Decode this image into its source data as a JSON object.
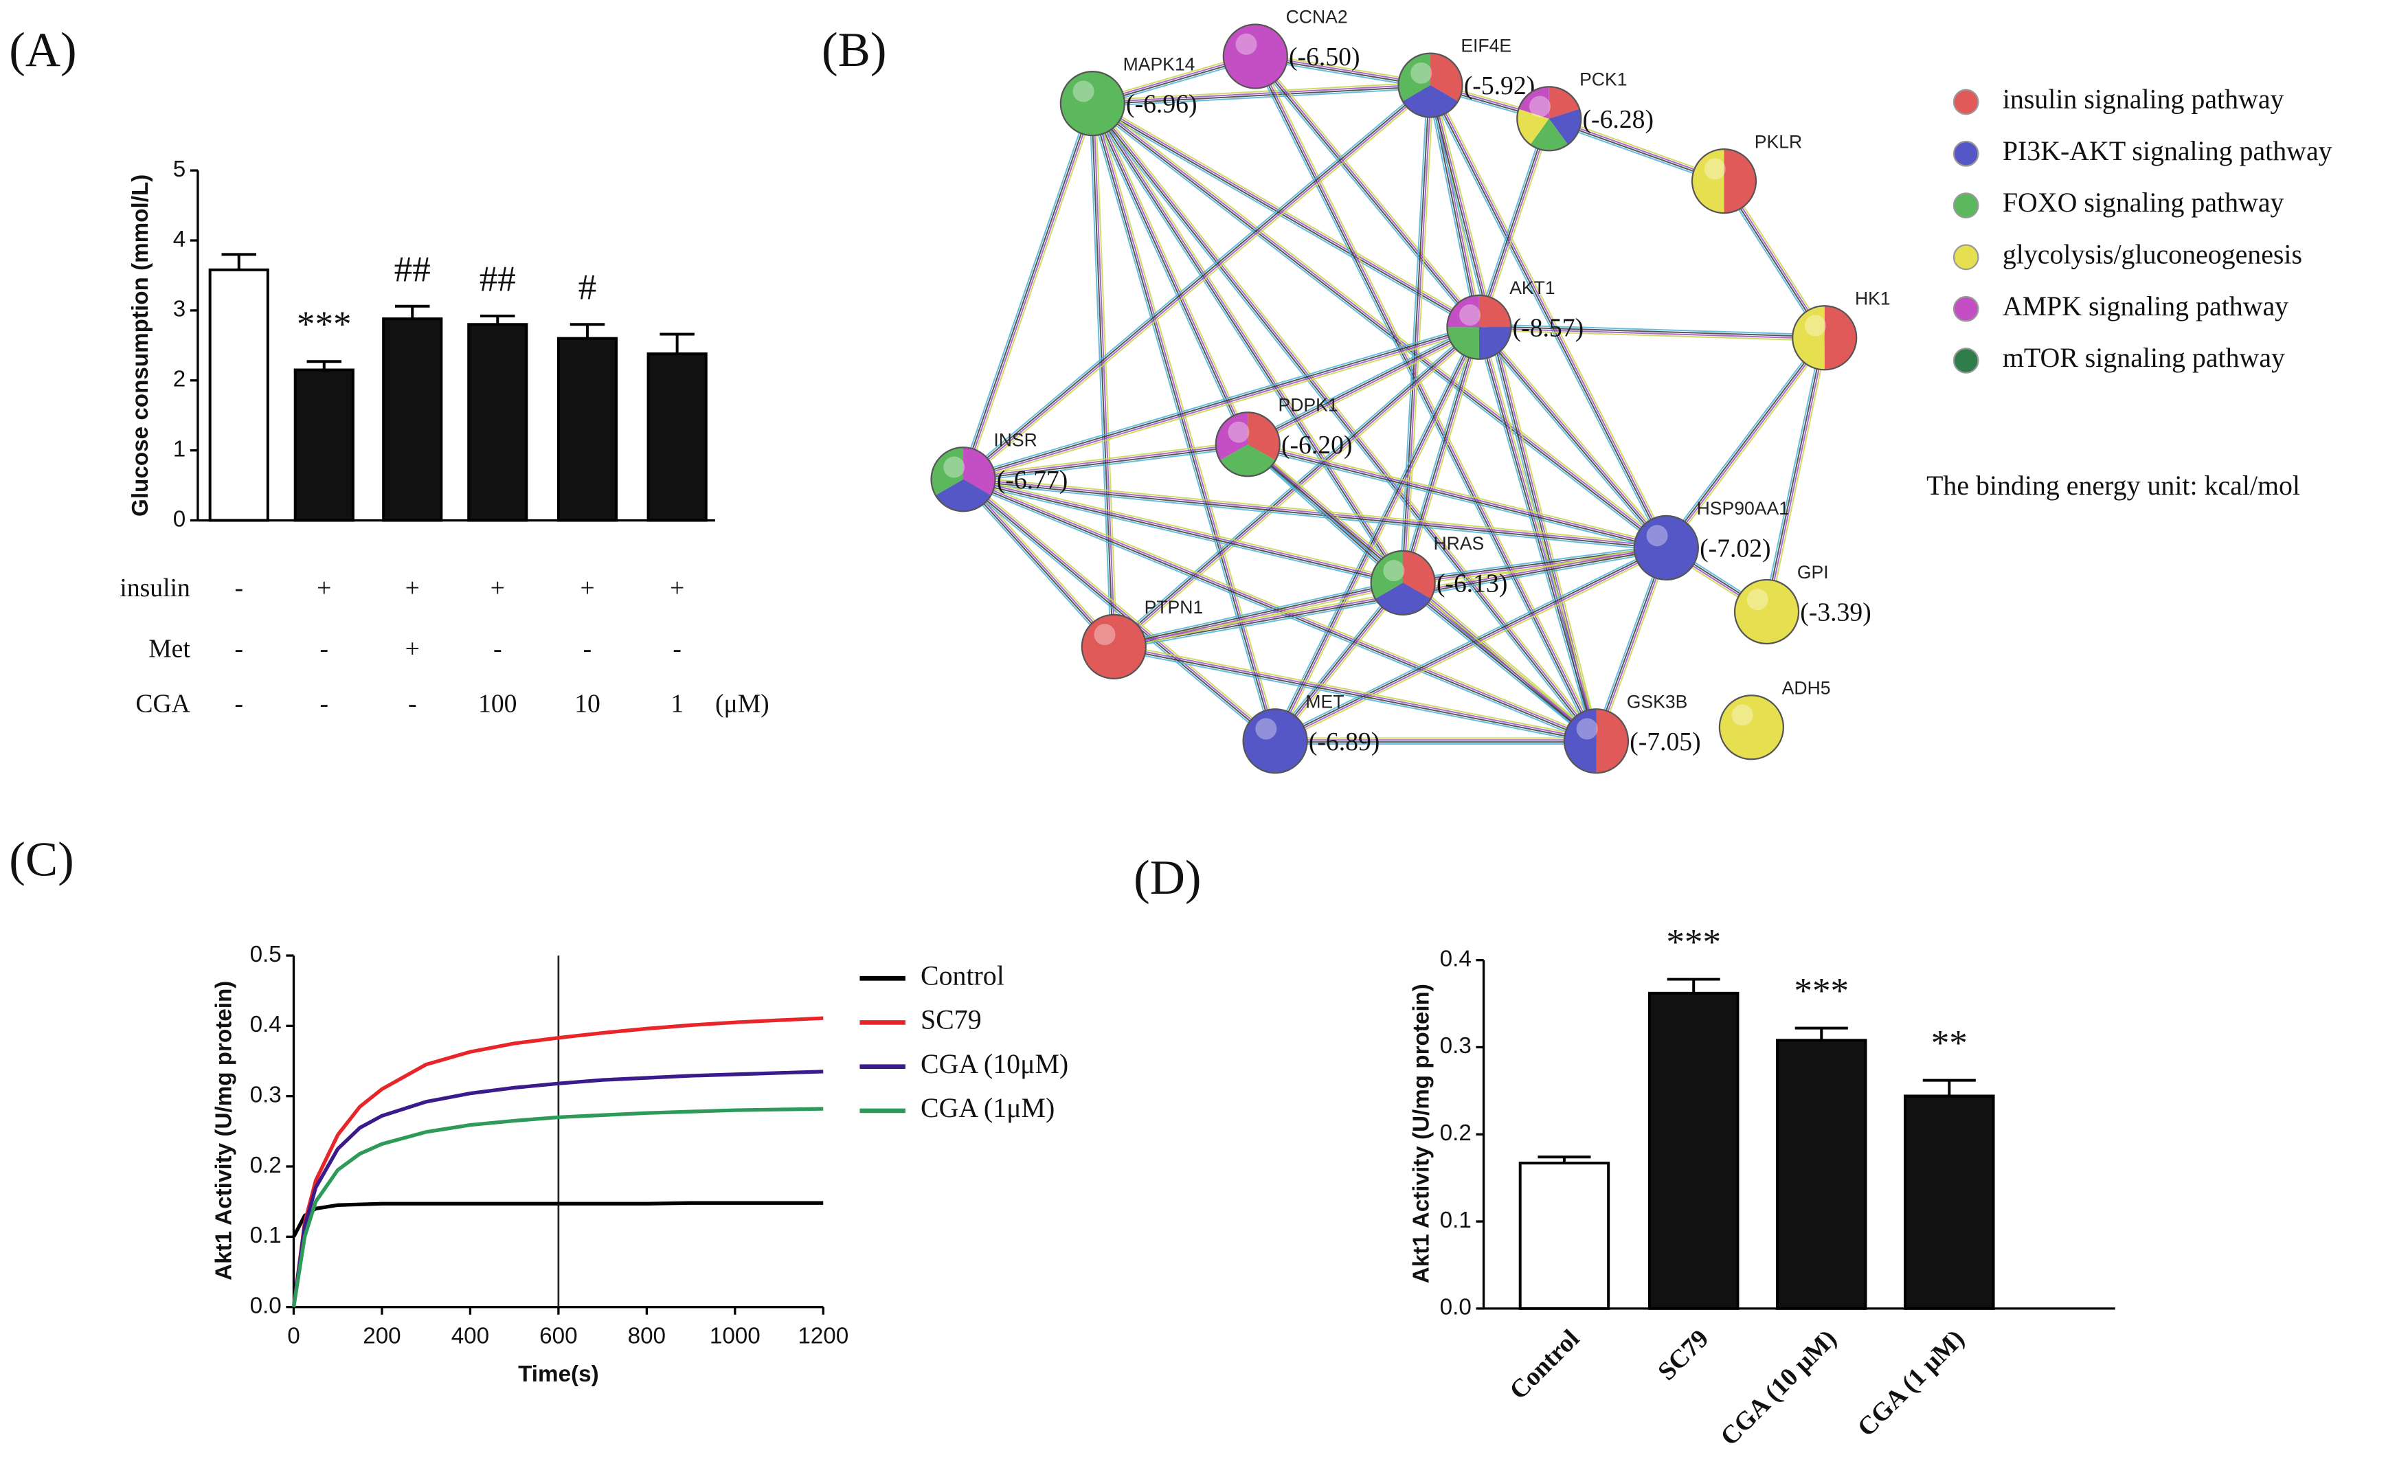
{
  "chart_data": [
    {
      "type": "bar",
      "panel": "(A)",
      "ylabel": "Glucose consumption (mmol/L)",
      "categories": [
        null,
        null,
        null,
        null,
        null,
        null
      ],
      "values": [
        3.58,
        2.15,
        2.88,
        2.8,
        2.6,
        2.38
      ],
      "errors": [
        0.22,
        0.12,
        0.18,
        0.12,
        0.2,
        0.28
      ],
      "colors": [
        "#ffffff",
        "#111111",
        "#111111",
        "#111111",
        "#111111",
        "#111111"
      ],
      "significance": [
        null,
        "***",
        "##",
        "##",
        "#",
        null
      ],
      "ylim": [
        0,
        5
      ],
      "yticks": [
        0,
        1,
        2,
        3,
        4,
        5
      ],
      "conditions": [
        {
          "label": "insulin",
          "cells": [
            "-",
            "+",
            "+",
            "+",
            "+",
            "+"
          ]
        },
        {
          "label": "Met",
          "cells": [
            "-",
            "-",
            "+",
            "-",
            "-",
            "-"
          ]
        },
        {
          "label": "CGA",
          "cells": [
            "-",
            "-",
            "-",
            "100",
            "10",
            "1"
          ]
        }
      ],
      "condition_unit": "(μM)"
    },
    {
      "type": "line",
      "panel": "(C)",
      "xlabel": "Time(s)",
      "ylabel": "Akt1 Activity (U/mg protein)",
      "x": [
        0,
        25,
        50,
        100,
        150,
        200,
        300,
        400,
        500,
        600,
        700,
        800,
        900,
        1000,
        1100,
        1200
      ],
      "series": [
        {
          "name": "Control",
          "color": "#000000",
          "values": [
            0.1,
            0.13,
            0.14,
            0.145,
            0.146,
            0.147,
            0.147,
            0.147,
            0.147,
            0.147,
            0.147,
            0.147,
            0.148,
            0.148,
            0.148,
            0.148
          ]
        },
        {
          "name": "SC79",
          "color": "#e8262a",
          "values": [
            0,
            0.12,
            0.18,
            0.245,
            0.285,
            0.31,
            0.345,
            0.363,
            0.375,
            0.383,
            0.39,
            0.396,
            0.401,
            0.405,
            0.408,
            0.411
          ]
        },
        {
          "name": "CGA (10μM)",
          "color": "#3b1a8c",
          "values": [
            0,
            0.115,
            0.17,
            0.225,
            0.255,
            0.272,
            0.292,
            0.304,
            0.312,
            0.318,
            0.323,
            0.326,
            0.329,
            0.331,
            0.333,
            0.335
          ]
        },
        {
          "name": "CGA (1μM)",
          "color": "#2e9a5a",
          "values": [
            0,
            0.1,
            0.15,
            0.195,
            0.218,
            0.232,
            0.249,
            0.259,
            0.265,
            0.27,
            0.273,
            0.276,
            0.278,
            0.28,
            0.281,
            0.282
          ]
        }
      ],
      "vline": 600,
      "xlim": [
        0,
        1200
      ],
      "xticks": [
        0,
        200,
        400,
        600,
        800,
        1000,
        1200
      ],
      "ylim": [
        0,
        0.5
      ],
      "yticks": [
        {
          "value": 0,
          "label": "0.0"
        },
        0.1,
        0.2,
        0.3,
        0.4,
        0.5
      ]
    },
    {
      "type": "bar",
      "panel": "(D)",
      "ylabel": "Akt1 Activity (U/mg protein)",
      "categories": [
        "Control",
        "SC79",
        "CGA (10 μM)",
        "CGA (1 μM)"
      ],
      "values": [
        0.167,
        0.362,
        0.308,
        0.244
      ],
      "errors": [
        0.007,
        0.016,
        0.014,
        0.018
      ],
      "colors": [
        "#ffffff",
        "#111111",
        "#111111",
        "#111111"
      ],
      "significance": [
        null,
        "***",
        "***",
        "**"
      ],
      "ylim": [
        0,
        0.4
      ],
      "yticks": [
        {
          "value": 0,
          "label": "0.0"
        },
        0.1,
        0.2,
        0.3,
        0.4
      ]
    }
  ],
  "network": {
    "panel": "(B)",
    "nodes": [
      {
        "label": "MAPK14",
        "energy": "(-6.96)",
        "colors": [
          "#5cb85c"
        ]
      },
      {
        "label": "CCNA2",
        "energy": "(-6.50)",
        "colors": [
          "#c44fc4"
        ]
      },
      {
        "label": "EIF4E",
        "energy": "(-5.92)",
        "colors": [
          "#e05a5a",
          "#5557c7",
          "#5cb85c"
        ]
      },
      {
        "label": "PCK1",
        "energy": "(-6.28)",
        "colors": [
          "#e05a5a",
          "#5557c7",
          "#5cb85c",
          "#e6e050",
          "#c44fc4"
        ]
      },
      {
        "label": "PKLR",
        "energy": null,
        "colors": [
          "#e05a5a",
          "#e6e050"
        ]
      },
      {
        "label": "HK1",
        "energy": null,
        "colors": [
          "#e05a5a",
          "#e6e050"
        ]
      },
      {
        "label": "AKT1",
        "energy": "(-8.57)",
        "colors": [
          "#e05a5a",
          "#5557c7",
          "#5cb85c",
          "#c44fc4"
        ]
      },
      {
        "label": "INSR",
        "energy": "(-6.77)",
        "colors": [
          "#c44fc4",
          "#5557c7",
          "#5cb85c"
        ]
      },
      {
        "label": "PDPK1",
        "energy": "(-6.20)",
        "colors": [
          "#e05a5a",
          "#5cb85c",
          "#c44fc4"
        ]
      },
      {
        "label": "HSP90AA1",
        "energy": "(-7.02)",
        "colors": [
          "#5557c7"
        ]
      },
      {
        "label": "GPI",
        "energy": "(-3.39)",
        "colors": [
          "#e6e050"
        ]
      },
      {
        "label": "HRAS",
        "energy": "(-6.13)",
        "colors": [
          "#e05a5a",
          "#5557c7",
          "#5cb85c"
        ]
      },
      {
        "label": "PTPN1",
        "energy": null,
        "colors": [
          "#e05a5a"
        ]
      },
      {
        "label": "MET",
        "energy": "(-6.89)",
        "colors": [
          "#5557c7"
        ]
      },
      {
        "label": "GSK3B",
        "energy": "(-7.05)",
        "colors": [
          "#e05a5a",
          "#5557c7"
        ]
      },
      {
        "label": "ADH5",
        "energy": null,
        "colors": [
          "#e6e050"
        ]
      }
    ],
    "legend": [
      {
        "name": "insulin signaling pathway",
        "color": "#e05a5a"
      },
      {
        "name": "PI3K-AKT signaling pathway",
        "color": "#5557c7"
      },
      {
        "name": "FOXO signaling pathway",
        "color": "#5cb85c"
      },
      {
        "name": "glycolysis/gluconeogenesis",
        "color": "#e6e050"
      },
      {
        "name": "AMPK signaling pathway",
        "color": "#c44fc4"
      },
      {
        "name": "mTOR signaling pathway",
        "color": "#2e7d4a"
      }
    ],
    "note": "The binding energy unit: kcal/mol"
  }
}
